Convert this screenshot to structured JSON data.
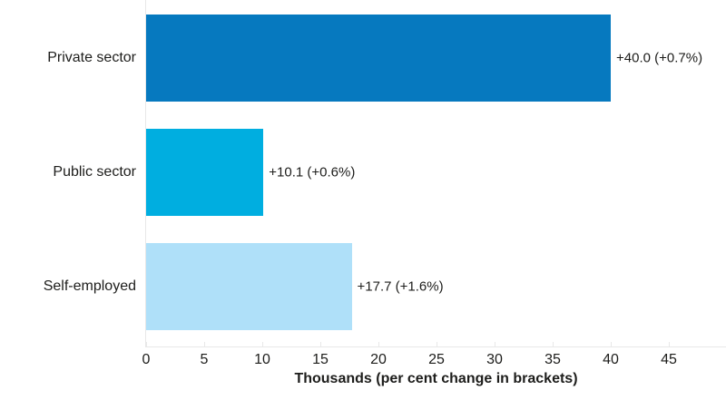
{
  "chart_data": {
    "type": "bar",
    "orientation": "horizontal",
    "xlabel": "Thousands (per cent change in brackets)",
    "categories": [
      "Private sector",
      "Public sector",
      "Self-employed"
    ],
    "values": [
      40.0,
      10.1,
      17.7
    ],
    "percent_changes": [
      "+0.7%",
      "+0.6%",
      "+1.6%"
    ],
    "value_labels": [
      "+40.0 (+0.7%)",
      "+10.1 (+0.6%)",
      "+17.7 (+1.6%)"
    ],
    "bar_colors": [
      "#0679BF",
      "#00AEE0",
      "#AFE0F9"
    ],
    "x_ticks": [
      0,
      5,
      10,
      15,
      20,
      25,
      30,
      35,
      40,
      45
    ],
    "xlim": [
      0,
      50
    ],
    "grid": false,
    "legend_position": "none"
  },
  "colors": {
    "axis_line": "#E8E8E8",
    "text": "#1D1D1B",
    "background": "#FFFFFF"
  }
}
